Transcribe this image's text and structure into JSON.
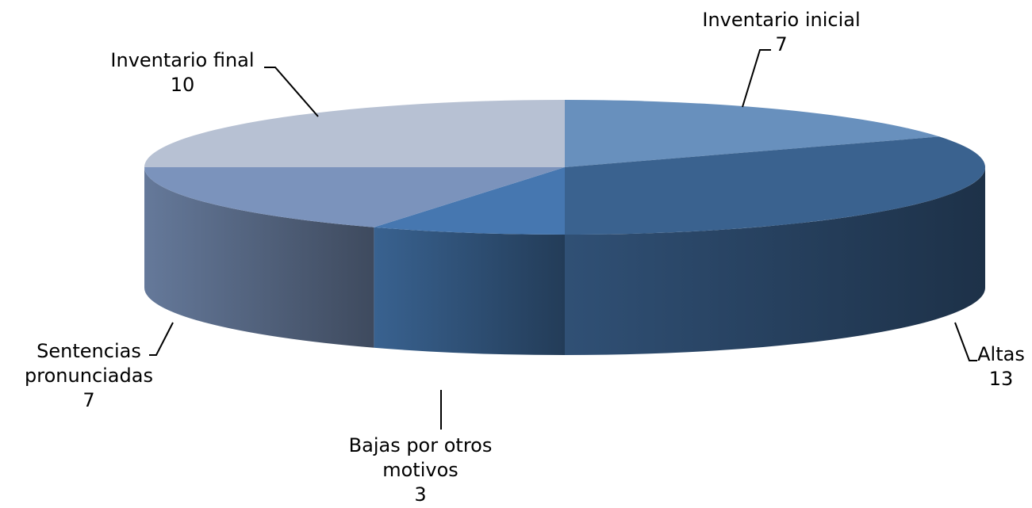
{
  "chart_data": {
    "type": "pie",
    "title": "",
    "style": "3d",
    "categories": [
      "Inventario inicial",
      "Altas",
      "Bajas por otros motivos",
      "Sentencias pronunciadas",
      "Inventario final"
    ],
    "values": [
      7,
      13,
      3,
      7,
      10
    ],
    "labels": [
      {
        "name_lines": [
          "Inventario inicial"
        ],
        "value": "7"
      },
      {
        "name_lines": [
          "Altas"
        ],
        "value": "13"
      },
      {
        "name_lines": [
          "Bajas por otros",
          "motivos"
        ],
        "value": "3"
      },
      {
        "name_lines": [
          "Sentencias",
          "pronunciadas"
        ],
        "value": "7"
      },
      {
        "name_lines": [
          "Inventario final"
        ],
        "value": "10"
      }
    ],
    "colors": [
      "#6890bd",
      "#3a628f",
      "#4677b0",
      "#7b93bc",
      "#b7c1d3"
    ],
    "legend": "none"
  }
}
